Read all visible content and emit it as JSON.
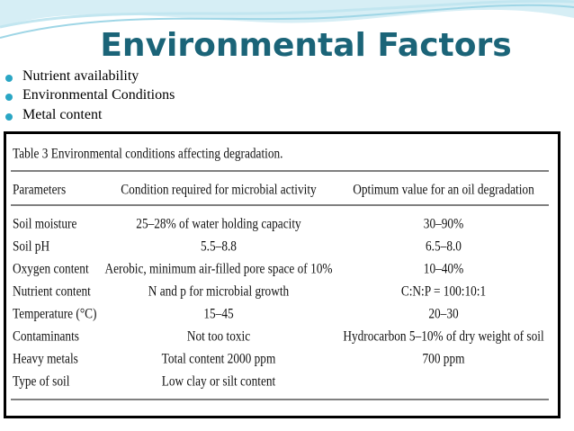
{
  "header": {
    "title": "Environmental Factors"
  },
  "bullets": [
    "Nutrient availability",
    "Environmental Conditions",
    "Metal content"
  ],
  "table": {
    "caption": "Table 3 Environmental conditions affecting degradation.",
    "columns": [
      "Parameters",
      "Condition required for microbial activity",
      "Optimum value for an oil degradation"
    ],
    "rows": [
      [
        "Soil moisture",
        "25–28% of water holding capacity",
        "30–90%"
      ],
      [
        "Soil pH",
        "5.5–8.8",
        "6.5–8.0"
      ],
      [
        "Oxygen content",
        "Aerobic, minimum air-filled pore space of 10%",
        "10–40%"
      ],
      [
        "Nutrient content",
        "N and p for microbial growth",
        "C:N:P = 100:10:1"
      ],
      [
        "Temperature (°C)",
        "15–45",
        "20–30"
      ],
      [
        "Contaminants",
        "Not too toxic",
        "Hydrocarbon 5–10% of dry weight of soil"
      ],
      [
        "Heavy metals",
        "Total content 2000 ppm",
        "700 ppm"
      ],
      [
        "Type of soil",
        "Low clay or silt content",
        ""
      ]
    ]
  }
}
